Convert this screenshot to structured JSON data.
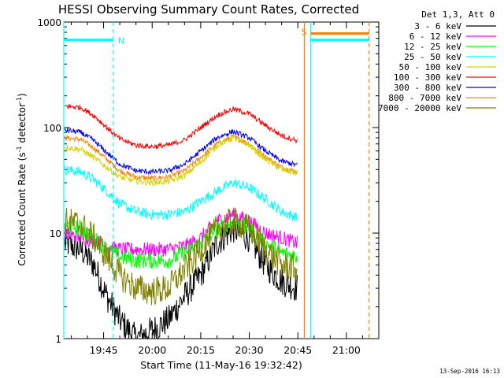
{
  "chart_data": {
    "type": "line",
    "title": "HESSI Observing Summary Count Rates, Corrected",
    "xlabel": "Start Time (11-May-16 19:32:42)",
    "ylabel_main": "Corrected Count Rate (s",
    "ylabel_sup1": "-1",
    "ylabel_mid": " detector",
    "ylabel_sup2": "-1",
    "ylabel_end": ")",
    "yscale": "log",
    "ylim": [
      1,
      1000
    ],
    "y_ticks": [
      {
        "value": 1,
        "label": "1"
      },
      {
        "value": 10,
        "label": "10"
      },
      {
        "value": 100,
        "label": "100"
      },
      {
        "value": 1000,
        "label": "1000"
      }
    ],
    "xlim": [
      "19:32:42",
      "21:10:00"
    ],
    "x_ticks": [
      {
        "time": "19:45",
        "label": "19:45"
      },
      {
        "time": "20:00",
        "label": "20:00"
      },
      {
        "time": "20:15",
        "label": "20:15"
      },
      {
        "time": "20:30",
        "label": "20:30"
      },
      {
        "time": "20:45",
        "label": "20:45"
      },
      {
        "time": "21:00",
        "label": "21:00"
      }
    ],
    "legend_header": "Det 1,3, Att 0",
    "legend_position": "right",
    "series": [
      {
        "name": "3 - 6 keV",
        "color": "#000000",
        "points": [
          [
            "19:33",
            8
          ],
          [
            "19:38",
            7
          ],
          [
            "19:42",
            5
          ],
          [
            "19:46",
            2.5
          ],
          [
            "19:50",
            1.5
          ],
          [
            "19:55",
            1
          ],
          [
            "20:00",
            1.2
          ],
          [
            "20:05",
            1.5
          ],
          [
            "20:10",
            2.5
          ],
          [
            "20:15",
            4
          ],
          [
            "20:20",
            8
          ],
          [
            "20:25",
            11
          ],
          [
            "20:30",
            9
          ],
          [
            "20:35",
            5
          ],
          [
            "20:40",
            3.5
          ],
          [
            "20:45",
            3
          ]
        ]
      },
      {
        "name": "6 - 12 keV",
        "color": "#ff00ff",
        "points": [
          [
            "19:33",
            10
          ],
          [
            "19:38",
            9
          ],
          [
            "19:42",
            8.5
          ],
          [
            "19:46",
            7.5
          ],
          [
            "19:50",
            7
          ],
          [
            "19:55",
            7
          ],
          [
            "20:00",
            7
          ],
          [
            "20:05",
            7
          ],
          [
            "20:10",
            7.5
          ],
          [
            "20:15",
            9
          ],
          [
            "20:20",
            13
          ],
          [
            "20:25",
            15
          ],
          [
            "20:30",
            13
          ],
          [
            "20:35",
            10
          ],
          [
            "20:40",
            9
          ],
          [
            "20:45",
            8
          ]
        ]
      },
      {
        "name": "12 - 25 keV",
        "color": "#00ff00",
        "points": [
          [
            "19:33",
            12
          ],
          [
            "19:38",
            11
          ],
          [
            "19:42",
            9
          ],
          [
            "19:46",
            7
          ],
          [
            "19:50",
            6
          ],
          [
            "19:55",
            5.5
          ],
          [
            "20:00",
            5.5
          ],
          [
            "20:05",
            5.5
          ],
          [
            "20:10",
            6.5
          ],
          [
            "20:15",
            8
          ],
          [
            "20:20",
            11
          ],
          [
            "20:25",
            13
          ],
          [
            "20:30",
            11
          ],
          [
            "20:35",
            8
          ],
          [
            "20:40",
            6.5
          ],
          [
            "20:45",
            6
          ]
        ]
      },
      {
        "name": "25 - 50 keV",
        "color": "#00ffff",
        "points": [
          [
            "19:33",
            40
          ],
          [
            "19:38",
            38
          ],
          [
            "19:42",
            32
          ],
          [
            "19:46",
            25
          ],
          [
            "19:50",
            19
          ],
          [
            "19:55",
            16
          ],
          [
            "20:00",
            15
          ],
          [
            "20:05",
            15
          ],
          [
            "20:10",
            16
          ],
          [
            "20:15",
            20
          ],
          [
            "20:20",
            25
          ],
          [
            "20:25",
            30
          ],
          [
            "20:30",
            27
          ],
          [
            "20:35",
            21
          ],
          [
            "20:40",
            16
          ],
          [
            "20:45",
            14
          ]
        ]
      },
      {
        "name": "50 - 100 keV",
        "color": "#d4d400",
        "points": [
          [
            "19:33",
            65
          ],
          [
            "19:38",
            62
          ],
          [
            "19:42",
            52
          ],
          [
            "19:46",
            42
          ],
          [
            "19:50",
            34
          ],
          [
            "19:55",
            31
          ],
          [
            "20:00",
            30
          ],
          [
            "20:05",
            31
          ],
          [
            "20:10",
            35
          ],
          [
            "20:15",
            47
          ],
          [
            "20:20",
            68
          ],
          [
            "20:25",
            80
          ],
          [
            "20:30",
            68
          ],
          [
            "20:35",
            50
          ],
          [
            "20:40",
            40
          ],
          [
            "20:45",
            37
          ]
        ]
      },
      {
        "name": "100 - 300 keV",
        "color": "#ff0000",
        "points": [
          [
            "19:33",
            160
          ],
          [
            "19:38",
            155
          ],
          [
            "19:42",
            130
          ],
          [
            "19:46",
            100
          ],
          [
            "19:50",
            78
          ],
          [
            "19:55",
            68
          ],
          [
            "20:00",
            66
          ],
          [
            "20:05",
            68
          ],
          [
            "20:10",
            76
          ],
          [
            "20:15",
            100
          ],
          [
            "20:20",
            130
          ],
          [
            "20:25",
            150
          ],
          [
            "20:30",
            135
          ],
          [
            "20:35",
            105
          ],
          [
            "20:40",
            84
          ],
          [
            "20:45",
            75
          ]
        ]
      },
      {
        "name": "300 - 800 keV",
        "color": "#0000ff",
        "points": [
          [
            "19:33",
            95
          ],
          [
            "19:38",
            90
          ],
          [
            "19:42",
            75
          ],
          [
            "19:46",
            58
          ],
          [
            "19:50",
            45
          ],
          [
            "19:55",
            39
          ],
          [
            "20:00",
            38
          ],
          [
            "20:05",
            39
          ],
          [
            "20:10",
            45
          ],
          [
            "20:15",
            60
          ],
          [
            "20:20",
            80
          ],
          [
            "20:25",
            92
          ],
          [
            "20:30",
            80
          ],
          [
            "20:35",
            60
          ],
          [
            "20:40",
            48
          ],
          [
            "20:45",
            44
          ]
        ]
      },
      {
        "name": "800 - 7000 keV",
        "color": "#ff8000",
        "points": [
          [
            "19:33",
            80
          ],
          [
            "19:38",
            77
          ],
          [
            "19:42",
            64
          ],
          [
            "19:46",
            50
          ],
          [
            "19:50",
            39
          ],
          [
            "19:55",
            34
          ],
          [
            "20:00",
            33
          ],
          [
            "20:05",
            34
          ],
          [
            "20:10",
            39
          ],
          [
            "20:15",
            52
          ],
          [
            "20:20",
            70
          ],
          [
            "20:25",
            82
          ],
          [
            "20:30",
            70
          ],
          [
            "20:35",
            53
          ],
          [
            "20:40",
            42
          ],
          [
            "20:45",
            38
          ]
        ]
      },
      {
        "name": "7000 - 20000 keV",
        "color": "#808000",
        "points": [
          [
            "19:33",
            13
          ],
          [
            "19:38",
            12
          ],
          [
            "19:42",
            9
          ],
          [
            "19:46",
            6
          ],
          [
            "19:50",
            4
          ],
          [
            "19:55",
            3
          ],
          [
            "20:00",
            2.8
          ],
          [
            "20:05",
            3
          ],
          [
            "20:10",
            4.5
          ],
          [
            "20:15",
            7
          ],
          [
            "20:20",
            11
          ],
          [
            "20:25",
            13
          ],
          [
            "20:30",
            11
          ],
          [
            "20:35",
            7
          ],
          [
            "20:40",
            5
          ],
          [
            "20:45",
            4.5
          ]
        ]
      }
    ],
    "annotations": [
      {
        "label": "N",
        "color": "#00ffff",
        "bar_start": "19:32:42",
        "bar_end": "19:48:00",
        "bar_value": 680
      },
      {
        "label": "",
        "color": "#00ffff",
        "bar_start": "20:49:00",
        "bar_end": "21:07:00",
        "bar_value": 680
      },
      {
        "label": "S",
        "color": "#ff8000",
        "bar_start": "20:49:00",
        "bar_end": "21:07:00",
        "bar_value": 780
      }
    ],
    "vertical_markers": [
      {
        "time": "19:32:42",
        "color": "#00ffff",
        "style": "solid"
      },
      {
        "time": "19:48:00",
        "color": "#00ffff",
        "style": "dashed"
      },
      {
        "time": "20:47:00",
        "color": "#ff8000",
        "style": "solid"
      },
      {
        "time": "20:49:00",
        "color": "#00ffff",
        "style": "solid"
      },
      {
        "time": "21:07:00",
        "color": "#ff8000",
        "style": "dashed"
      }
    ]
  },
  "footer_timestamp": "13-Sep-2016 16:13"
}
